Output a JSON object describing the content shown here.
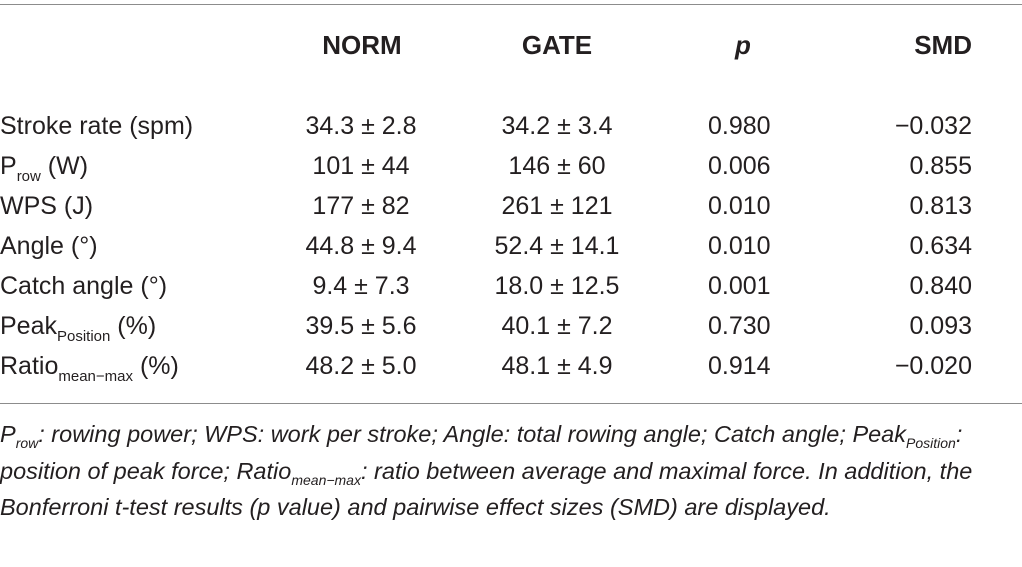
{
  "table": {
    "headers": {
      "norm": "NORM",
      "gate": "GATE",
      "p": "p",
      "smd": "SMD"
    },
    "rows": [
      {
        "label": "Stroke rate (spm)",
        "norm": "34.3 ± 2.8",
        "gate": "34.2 ± 3.4",
        "p": "0.980",
        "smd": "−0.032"
      },
      {
        "label_main": "P",
        "label_sub": "row",
        "label_rest": " (W)",
        "norm": "101 ± 44",
        "gate": "146 ± 60",
        "p": "0.006",
        "smd": "0.855"
      },
      {
        "label": "WPS (J)",
        "norm": "177 ± 82",
        "gate": "261 ± 121",
        "p": "0.010",
        "smd": "0.813"
      },
      {
        "label": "Angle (°)",
        "norm": "44.8 ± 9.4",
        "gate": "52.4 ± 14.1",
        "p": "0.010",
        "smd": "0.634"
      },
      {
        "label": "Catch angle (°)",
        "norm": "9.4 ± 7.3",
        "gate": "18.0 ± 12.5",
        "p": "0.001",
        "smd": "0.840"
      },
      {
        "label_main": "Peak",
        "label_sub": "Position",
        "label_rest": " (%)",
        "norm": "39.5 ± 5.6",
        "gate": "40.1 ± 7.2",
        "p": "0.730",
        "smd": "0.093"
      },
      {
        "label_main": "Ratio",
        "label_sub": "mean−max",
        "label_rest": " (%)",
        "norm": "48.2 ± 5.0",
        "gate": "48.1 ± 4.9",
        "p": "0.914",
        "smd": "−0.020"
      }
    ]
  },
  "footnote": {
    "s1_main": "P",
    "s1_sub": "row",
    "s1_text": ": rowing power; WPS: work per stroke; Angle: total rowing angle; Catch angle; ",
    "s2_main": "Peak",
    "s2_sub": "Position",
    "s2_text": ": position of peak force; ",
    "s3_main": "Ratio",
    "s3_sub": "mean−max",
    "s3_text": ": ratio between average and maximal force. In addition, the Bonferroni t-test results (p value) and pairwise effect sizes (SMD) are displayed."
  }
}
